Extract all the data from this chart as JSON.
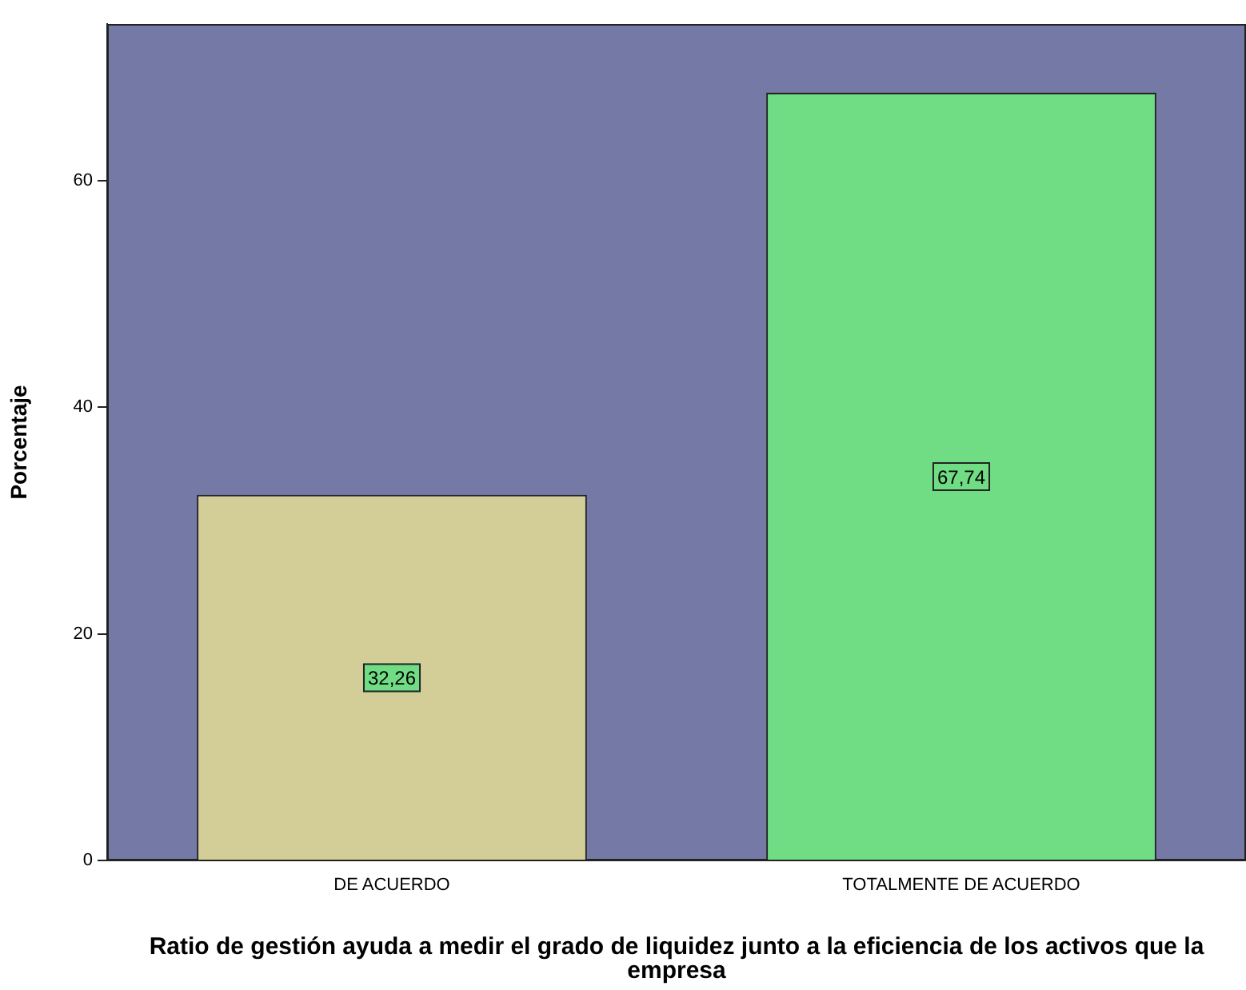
{
  "chart_data": {
    "type": "bar",
    "xlabel": "Ratio de gestión ayuda a medir el grado de liquidez junto a la eficiencia de los activos que la empresa",
    "ylabel": "Porcentaje",
    "categories": [
      "DE ACUERDO",
      "TOTALMENTE DE ACUERDO"
    ],
    "values": [
      32.26,
      67.74
    ],
    "colors": [
      "#d3ce97",
      "#70dc84"
    ],
    "value_labels": [
      "32,26",
      "67,74"
    ],
    "ylim": [
      0,
      73.8
    ],
    "yticks": [
      0,
      20,
      40,
      60
    ],
    "grid": false,
    "legend": false
  }
}
